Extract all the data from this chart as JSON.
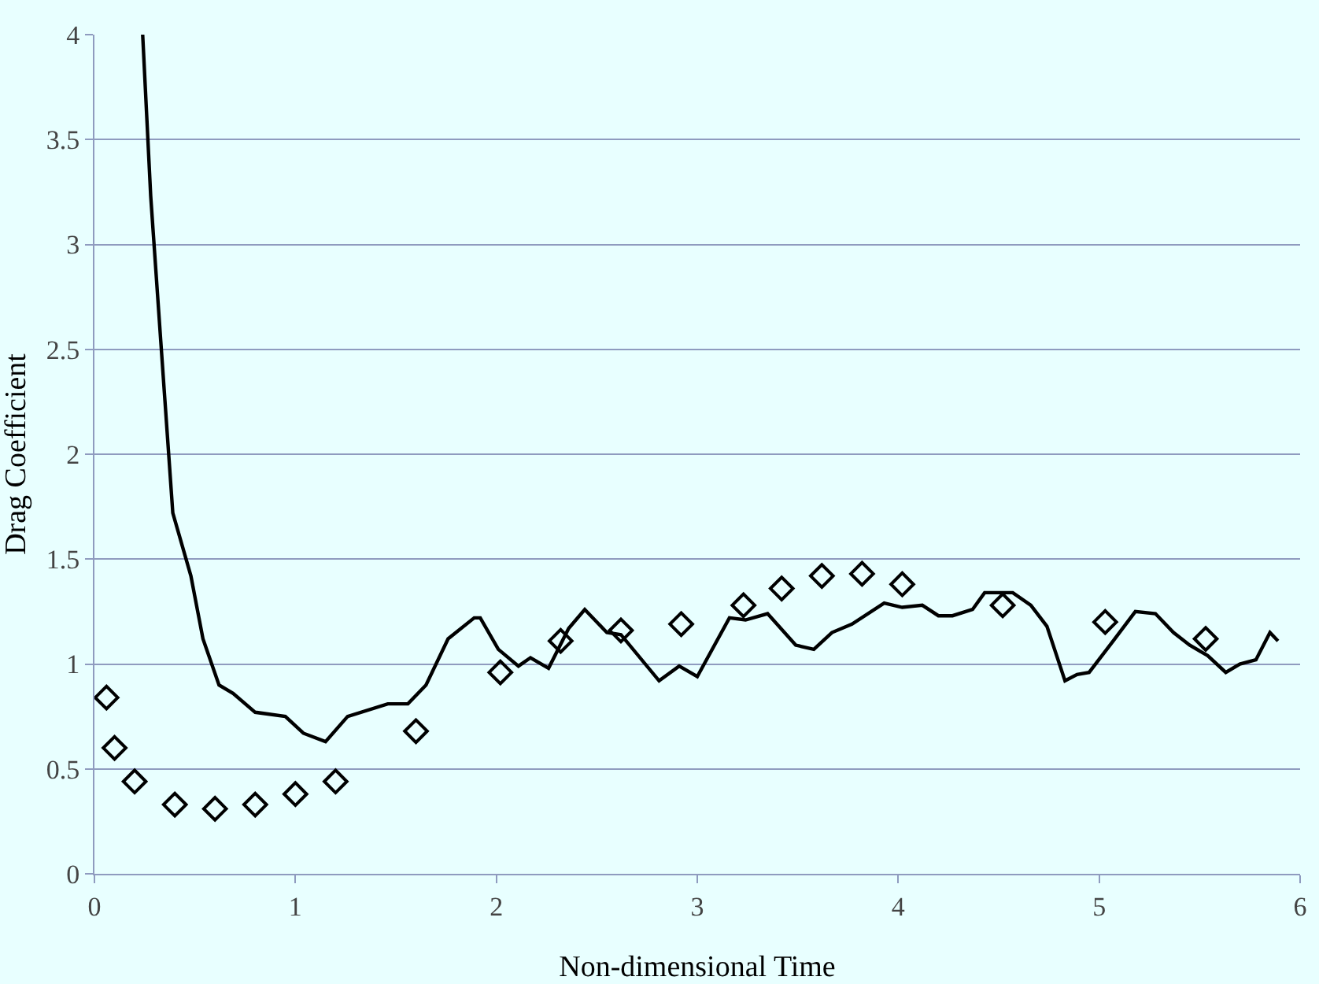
{
  "chart_data": {
    "type": "line",
    "xlabel": "Non-dimensional Time",
    "ylabel": "Drag Coefficient",
    "xlim": [
      0,
      6
    ],
    "xticks": [
      0,
      1,
      2,
      3,
      4,
      5,
      6
    ],
    "ylim": [
      0,
      4
    ],
    "yticks": [
      0,
      0.5,
      1,
      1.5,
      2,
      2.5,
      3,
      3.5,
      4
    ],
    "grid": "y",
    "series": [
      {
        "type": "line",
        "color": "#000000",
        "marker": "none",
        "line_style": "solid",
        "x": [
          0.24,
          0.28,
          0.33,
          0.39,
          0.48,
          0.54,
          0.62,
          0.69,
          0.8,
          0.95,
          1.04,
          1.15,
          1.26,
          1.46,
          1.56,
          1.65,
          1.76,
          1.89,
          1.92,
          2.01,
          2.11,
          2.17,
          2.26,
          2.36,
          2.44,
          2.55,
          2.62,
          2.81,
          2.91,
          3.0,
          3.16,
          3.24,
          3.35,
          3.49,
          3.58,
          3.67,
          3.77,
          3.93,
          4.02,
          4.12,
          4.2,
          4.27,
          4.37,
          4.43,
          4.57,
          4.66,
          4.74,
          4.83,
          4.89,
          4.95,
          5.07,
          5.18,
          5.28,
          5.37,
          5.45,
          5.54,
          5.63,
          5.7,
          5.78,
          5.85,
          5.89
        ],
        "values": [
          4.0,
          3.23,
          2.54,
          1.72,
          1.42,
          1.12,
          0.9,
          0.86,
          0.77,
          0.75,
          0.67,
          0.63,
          0.75,
          0.81,
          0.81,
          0.9,
          1.12,
          1.22,
          1.22,
          1.07,
          0.99,
          1.03,
          0.98,
          1.17,
          1.26,
          1.15,
          1.14,
          0.92,
          0.99,
          0.94,
          1.22,
          1.21,
          1.24,
          1.09,
          1.07,
          1.15,
          1.19,
          1.29,
          1.27,
          1.28,
          1.23,
          1.23,
          1.26,
          1.34,
          1.34,
          1.28,
          1.18,
          0.92,
          0.95,
          0.96,
          1.11,
          1.25,
          1.24,
          1.15,
          1.09,
          1.04,
          0.96,
          1.0,
          1.02,
          1.15,
          1.11
        ]
      },
      {
        "type": "scatter",
        "color": "#000000",
        "marker": "diamond",
        "x": [
          0.06,
          0.1,
          0.2,
          0.4,
          0.6,
          0.8,
          1.0,
          1.2,
          1.6,
          2.02,
          2.32,
          2.62,
          2.92,
          3.23,
          3.42,
          3.62,
          3.82,
          4.02,
          4.52,
          5.03,
          5.53
        ],
        "values": [
          0.84,
          0.6,
          0.44,
          0.33,
          0.31,
          0.33,
          0.38,
          0.44,
          0.68,
          0.96,
          1.11,
          1.16,
          1.19,
          1.28,
          1.36,
          1.42,
          1.43,
          1.38,
          1.28,
          1.2,
          1.12
        ]
      }
    ]
  }
}
